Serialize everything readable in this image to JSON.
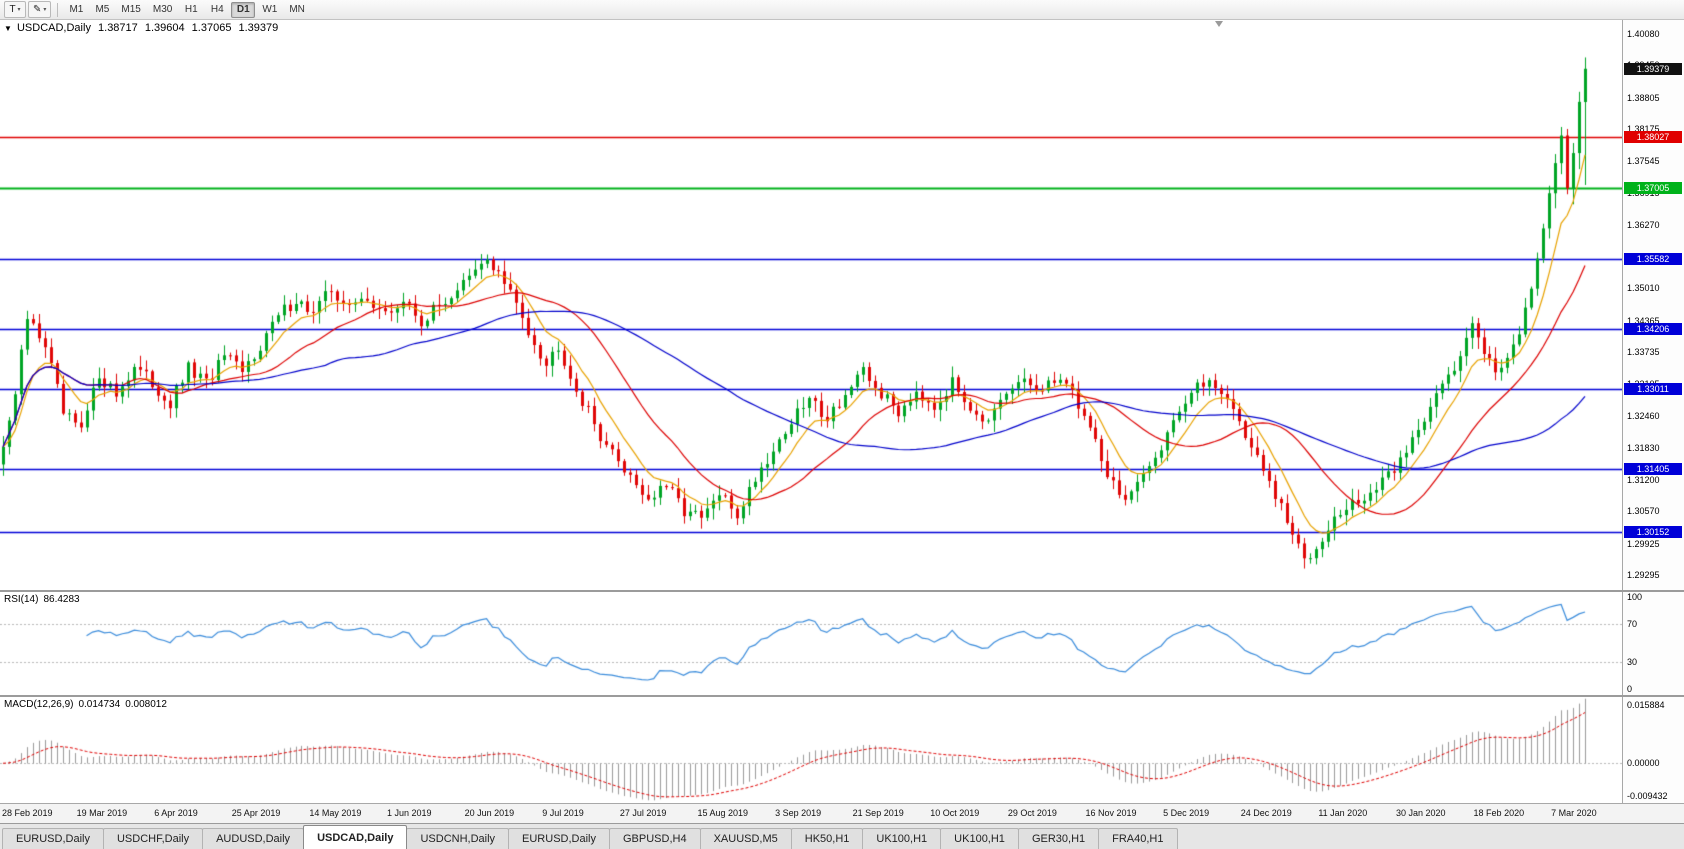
{
  "toolbar": {
    "tool_buttons": [
      {
        "id": "type-tool",
        "label": "T"
      },
      {
        "id": "draw-tool",
        "label": "✎"
      }
    ],
    "timeframes": [
      "M1",
      "M5",
      "M15",
      "M30",
      "H1",
      "H4",
      "D1",
      "W1",
      "MN"
    ],
    "active_timeframe": "D1"
  },
  "chart": {
    "symbol_label": "USDCAD,Daily",
    "o": "1.38717",
    "h": "1.39604",
    "l": "1.37065",
    "c": "1.39379",
    "current_price_label": "1.39379",
    "collapse_glyph": "▼"
  },
  "rsi": {
    "name": "RSI(14)",
    "value": "86.4283",
    "axis_labels": [
      "100",
      "70",
      "30",
      "0"
    ]
  },
  "macd": {
    "name": "MACD(12,26,9)",
    "main": "0.014734",
    "signal": "0.008012",
    "axis_top": "0.015884",
    "axis_zero": "0.00000",
    "axis_bottom": "-0.009432"
  },
  "tabs": {
    "items": [
      "EURUSD,Daily",
      "USDCHF,Daily",
      "AUDUSD,Daily",
      "USDCAD,Daily",
      "USDCNH,Daily",
      "EURUSD,Daily",
      "GBPUSD,H4",
      "XAUUSD,M5",
      "HK50,H1",
      "UK100,H1",
      "UK100,H1",
      "GER30,H1",
      "FRA40,H1"
    ],
    "active_index": 3
  },
  "colors": {
    "bull": "#00a525",
    "bear": "#e00707",
    "ma_fast": "#e8a200",
    "ma_mid": "#dd0000",
    "ma_slow": "#0000cc",
    "rsi_line": "#3c8ddc",
    "macd_bar": "#9a9a9a",
    "macd_signal": "#e00000",
    "level_guide": "#b8b8b8",
    "current_badge": "#111111"
  },
  "chart_data": {
    "type": "candlestick",
    "symbol": "USDCAD",
    "timeframe": "Daily",
    "num_candles": 266,
    "last_candle": {
      "open": 1.38717,
      "high": 1.39604,
      "low": 1.37065,
      "close": 1.39379
    },
    "price_view": {
      "max": 1.4035,
      "min": 1.29
    },
    "y_axis_ticks": [
      "1.40080",
      "1.39450",
      "1.38805",
      "1.38175",
      "1.37545",
      "1.36915",
      "1.36270",
      "1.35640",
      "1.35010",
      "1.34365",
      "1.33735",
      "1.33105",
      "1.32460",
      "1.31830",
      "1.31200",
      "1.30570",
      "1.29925",
      "1.29295"
    ],
    "x_axis_dates": [
      "28 Feb 2019",
      "19 Mar 2019",
      "6 Apr 2019",
      "25 Apr 2019",
      "14 May 2019",
      "1 Jun 2019",
      "20 Jun 2019",
      "9 Jul 2019",
      "27 Jul 2019",
      "15 Aug 2019",
      "3 Sep 2019",
      "21 Sep 2019",
      "10 Oct 2019",
      "29 Oct 2019",
      "16 Nov 2019",
      "5 Dec 2019",
      "24 Dec 2019",
      "11 Jan 2020",
      "30 Jan 2020",
      "18 Feb 2020",
      "7 Mar 2020"
    ],
    "candles_per_date_tick": 13,
    "horizontal_levels": [
      {
        "price": 1.38027,
        "label": "1.38027",
        "color": "#e00000",
        "width": 1.4
      },
      {
        "price": 1.37005,
        "label": "1.37005",
        "color": "#00b21a",
        "width": 2.0
      },
      {
        "price": 1.35582,
        "label": "1.35582",
        "color": "#0000d8",
        "width": 1.4
      },
      {
        "price": 1.34206,
        "label": "1.34206",
        "color": "#0000d8",
        "width": 1.4
      },
      {
        "price": 1.33011,
        "label": "1.33011",
        "color": "#0000d8",
        "width": 1.4
      },
      {
        "price": 1.31405,
        "label": "1.31405",
        "color": "#0000d8",
        "width": 1.4
      },
      {
        "price": 1.30152,
        "label": "1.30152",
        "color": "#0000d8",
        "width": 1.4
      }
    ],
    "moving_averages": [
      {
        "type": "ema",
        "period": 8
      },
      {
        "type": "sma",
        "period": 21
      },
      {
        "type": "sma",
        "period": 55
      }
    ],
    "close_path": [
      [
        0,
        1.3185
      ],
      [
        2,
        1.329
      ],
      [
        4,
        1.344
      ],
      [
        7,
        1.339
      ],
      [
        10,
        1.325
      ],
      [
        13,
        1.3215
      ],
      [
        16,
        1.333
      ],
      [
        19,
        1.329
      ],
      [
        22,
        1.3345
      ],
      [
        25,
        1.331
      ],
      [
        28,
        1.327
      ],
      [
        31,
        1.334
      ],
      [
        34,
        1.331
      ],
      [
        37,
        1.3365
      ],
      [
        40,
        1.333
      ],
      [
        43,
        1.339
      ],
      [
        46,
        1.3445
      ],
      [
        49,
        1.348
      ],
      [
        52,
        1.345
      ],
      [
        55,
        1.35
      ],
      [
        58,
        1.346
      ],
      [
        61,
        1.3485
      ],
      [
        64,
        1.3445
      ],
      [
        67,
        1.3475
      ],
      [
        70,
        1.3435
      ],
      [
        73,
        1.3465
      ],
      [
        76,
        1.35
      ],
      [
        79,
        1.353
      ],
      [
        81,
        1.356
      ],
      [
        83,
        1.353
      ],
      [
        85,
        1.349
      ],
      [
        88,
        1.342
      ],
      [
        91,
        1.335
      ],
      [
        93,
        1.339
      ],
      [
        96,
        1.33
      ],
      [
        99,
        1.323
      ],
      [
        102,
        1.317
      ],
      [
        105,
        1.313
      ],
      [
        108,
        1.308
      ],
      [
        111,
        1.3105
      ],
      [
        114,
        1.306
      ],
      [
        117,
        1.304
      ],
      [
        120,
        1.309
      ],
      [
        123,
        1.305
      ],
      [
        126,
        1.3125
      ],
      [
        129,
        1.318
      ],
      [
        132,
        1.3235
      ],
      [
        135,
        1.328
      ],
      [
        138,
        1.3245
      ],
      [
        141,
        1.329
      ],
      [
        144,
        1.333
      ],
      [
        147,
        1.329
      ],
      [
        150,
        1.3255
      ],
      [
        153,
        1.33
      ],
      [
        156,
        1.327
      ],
      [
        159,
        1.331
      ],
      [
        162,
        1.327
      ],
      [
        165,
        1.323
      ],
      [
        168,
        1.3285
      ],
      [
        171,
        1.332
      ],
      [
        174,
        1.329
      ],
      [
        177,
        1.333
      ],
      [
        180,
        1.327
      ],
      [
        183,
        1.32
      ],
      [
        185,
        1.313
      ],
      [
        188,
        1.308
      ],
      [
        191,
        1.312
      ],
      [
        194,
        1.319
      ],
      [
        196,
        1.3245
      ],
      [
        199,
        1.329
      ],
      [
        202,
        1.332
      ],
      [
        204,
        1.33
      ],
      [
        206,
        1.326
      ],
      [
        208,
        1.321
      ],
      [
        210,
        1.316
      ],
      [
        212,
        1.311
      ],
      [
        214,
        1.306
      ],
      [
        216,
        1.301
      ],
      [
        218,
        1.296
      ],
      [
        220,
        1.299
      ],
      [
        222,
        1.303
      ],
      [
        225,
        1.306
      ],
      [
        228,
        1.3085
      ],
      [
        231,
        1.311
      ],
      [
        234,
        1.316
      ],
      [
        237,
        1.322
      ],
      [
        240,
        1.33
      ],
      [
        243,
        1.333
      ],
      [
        245,
        1.34
      ],
      [
        246,
        1.3445
      ],
      [
        248,
        1.338
      ],
      [
        250,
        1.333
      ],
      [
        252,
        1.337
      ],
      [
        254,
        1.342
      ],
      [
        255,
        1.346
      ],
      [
        256,
        1.35
      ],
      [
        257,
        1.356
      ],
      [
        258,
        1.362
      ],
      [
        259,
        1.369
      ],
      [
        260,
        1.375
      ],
      [
        261,
        1.3805
      ],
      [
        262,
        1.37
      ],
      [
        263,
        1.377
      ],
      [
        264,
        1.3872
      ],
      [
        265,
        1.39379
      ]
    ],
    "override_candles": [
      {
        "i": 259,
        "o": 1.362,
        "h": 1.3705,
        "l": 1.36,
        "c": 1.369
      },
      {
        "i": 260,
        "o": 1.369,
        "h": 1.3768,
        "l": 1.366,
        "c": 1.375
      },
      {
        "i": 261,
        "o": 1.375,
        "h": 1.3822,
        "l": 1.3728,
        "c": 1.3805
      },
      {
        "i": 262,
        "o": 1.3805,
        "h": 1.3818,
        "l": 1.3688,
        "c": 1.37
      },
      {
        "i": 263,
        "o": 1.37,
        "h": 1.379,
        "l": 1.3668,
        "c": 1.377
      },
      {
        "i": 264,
        "o": 1.377,
        "h": 1.3892,
        "l": 1.3738,
        "c": 1.3872
      },
      {
        "i": 265,
        "o": 1.38717,
        "h": 1.39604,
        "l": 1.37065,
        "c": 1.39379
      }
    ],
    "indicators": [
      {
        "type": "rsi",
        "period": 14,
        "current": 86.4283,
        "guide_levels": [
          70,
          30
        ],
        "range": [
          0,
          100
        ]
      },
      {
        "type": "macd",
        "fast": 12,
        "slow": 26,
        "signal": 9,
        "current_main": 0.014734,
        "current_signal": 0.008012,
        "range": [
          -0.0096,
          0.016
        ]
      }
    ]
  }
}
